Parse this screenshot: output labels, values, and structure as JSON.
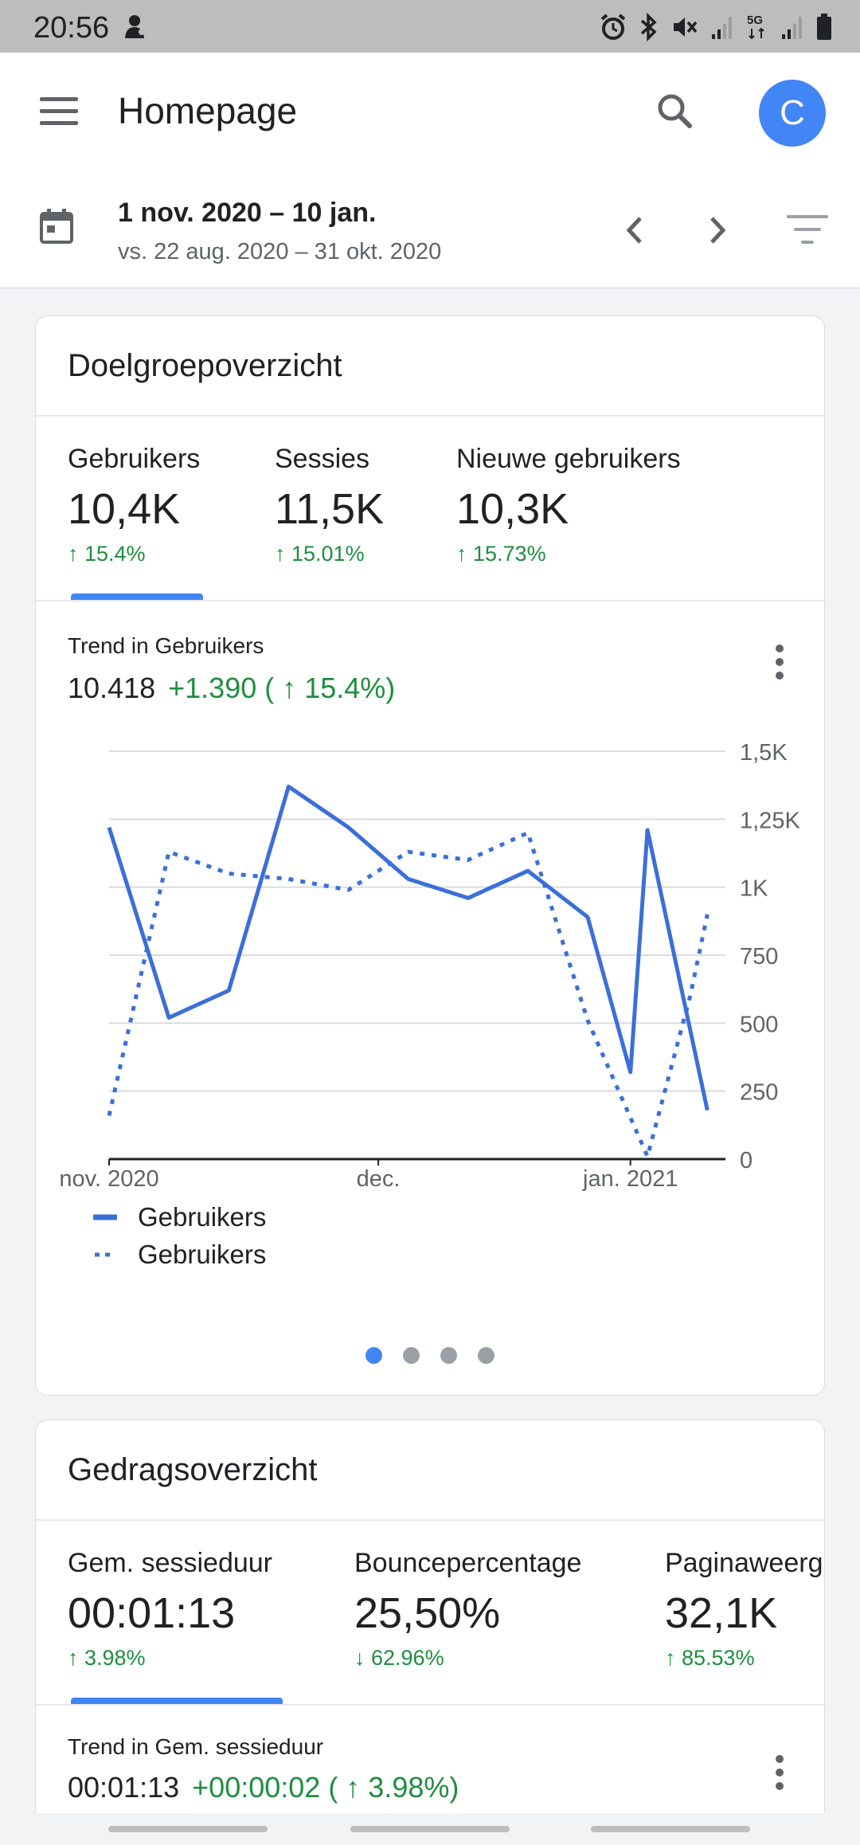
{
  "status_bar": {
    "time": "20:56",
    "icons": [
      "notification-icon",
      "alarm-icon",
      "bluetooth-icon",
      "mute-icon",
      "signal-icon",
      "5g-icon",
      "signal-icon",
      "battery-icon"
    ],
    "network_label": "5G"
  },
  "app_bar": {
    "title": "Homepage",
    "avatar_letter": "C",
    "avatar_color": "#4285f4"
  },
  "date_range": {
    "current": "1 nov. 2020 – 10 jan.",
    "comparison": "vs. 22 aug. 2020 – 31 okt. 2020"
  },
  "audience_card": {
    "title": "Doelgroepoverzicht",
    "metrics": [
      {
        "label": "Gebruikers",
        "value": "10,4K",
        "change": "↑ 15.4%"
      },
      {
        "label": "Sessies",
        "value": "11,5K",
        "change": "↑ 15.01%"
      },
      {
        "label": "Nieuwe gebruikers",
        "value": "10,3K",
        "change": "↑ 15.73%"
      }
    ],
    "trend": {
      "label": "Trend in Gebruikers",
      "total": "10.418",
      "delta": "+1.390 ( ↑ 15.4%)"
    },
    "legend": [
      "Gebruikers",
      "Gebruikers"
    ]
  },
  "chart_data": {
    "type": "line",
    "title": "",
    "xlabel": "",
    "ylabel": "",
    "x_tick_labels": [
      "nov. 2020",
      "dec.",
      "jan. 2021"
    ],
    "y_tick_labels": [
      "0",
      "250",
      "500",
      "750",
      "1K",
      "1,25K",
      "1,5K"
    ],
    "ylim": [
      0,
      1500
    ],
    "grid": true,
    "legend_position": "bottom-left",
    "x_range_days": [
      0,
      71
    ],
    "series": [
      {
        "name": "Gebruikers",
        "style": "solid",
        "color": "#3b6fd9",
        "points": [
          [
            0,
            1220
          ],
          [
            7,
            520
          ],
          [
            14,
            620
          ],
          [
            21,
            1370
          ],
          [
            28,
            1220
          ],
          [
            35,
            1030
          ],
          [
            42,
            960
          ],
          [
            49,
            1060
          ],
          [
            56,
            890
          ],
          [
            61,
            320
          ],
          [
            63,
            1210
          ],
          [
            70,
            180
          ]
        ]
      },
      {
        "name": "Gebruikers",
        "style": "dotted",
        "color": "#3b6fd9",
        "points": [
          [
            0,
            160
          ],
          [
            7,
            1130
          ],
          [
            14,
            1050
          ],
          [
            21,
            1030
          ],
          [
            28,
            990
          ],
          [
            35,
            1130
          ],
          [
            42,
            1100
          ],
          [
            49,
            1200
          ],
          [
            56,
            510
          ],
          [
            63,
            10
          ],
          [
            68,
            600
          ],
          [
            70,
            900
          ]
        ]
      }
    ]
  },
  "pagination": {
    "count": 4,
    "active": 0
  },
  "behavior_card": {
    "title": "Gedragsoverzicht",
    "metrics": [
      {
        "label": "Gem. sessieduur",
        "value": "00:01:13",
        "change": "↑ 3.98%",
        "direction": "up"
      },
      {
        "label": "Bouncepercentage",
        "value": "25,50%",
        "change": "↓ 62.96%",
        "direction": "down"
      },
      {
        "label": "Paginaweergaven",
        "value": "32,1K",
        "change": "↑ 85.53%",
        "direction": "up"
      }
    ],
    "trend": {
      "label": "Trend in Gem. sessieduur",
      "total": "00:01:13",
      "delta": "+00:00:02 ( ↑ 3.98%)"
    }
  },
  "colors": {
    "accent": "#4285f4",
    "positive": "#1e8e3e",
    "line": "#3b6fd9"
  }
}
